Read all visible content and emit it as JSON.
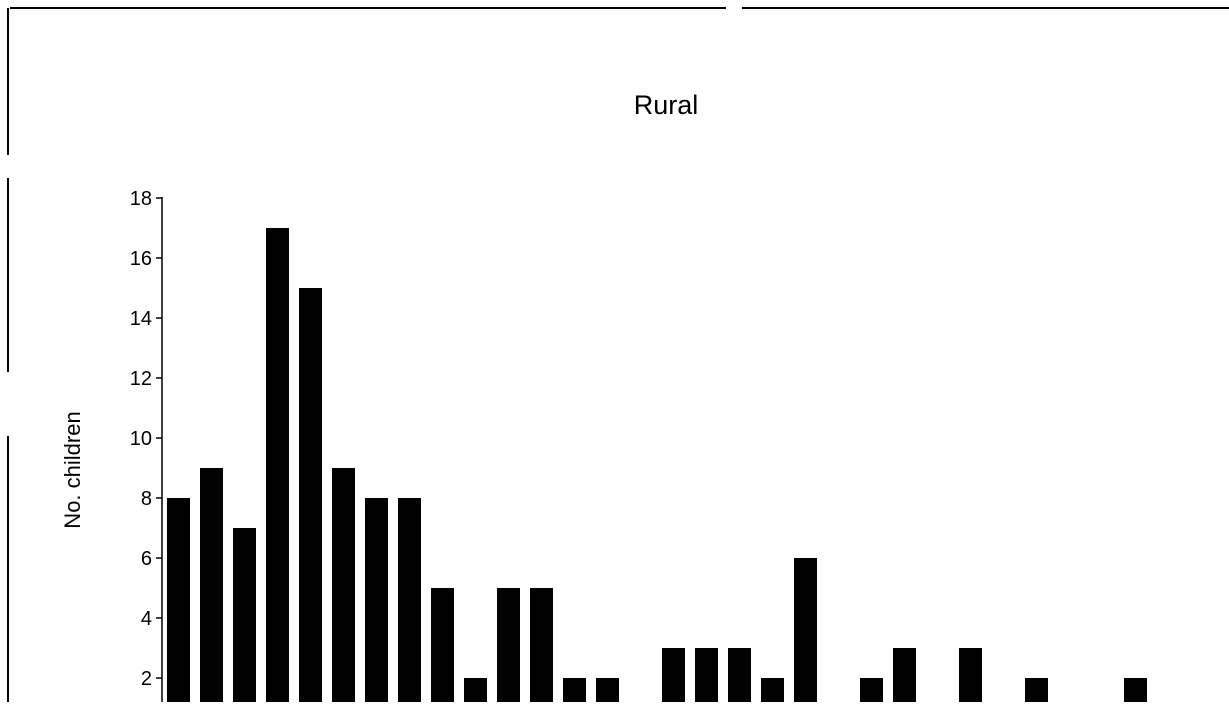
{
  "chart_data": {
    "type": "bar",
    "title": "Rural",
    "xlabel": "",
    "ylabel": "No. children",
    "ylim": [
      0,
      18
    ],
    "yticks": [
      2,
      4,
      6,
      8,
      10,
      12,
      14,
      16,
      18
    ],
    "grid": false,
    "legend": "none",
    "bar_color": "#000000",
    "series": [
      {
        "values": [
          8,
          9,
          7,
          17,
          15,
          9,
          8,
          8,
          5,
          2,
          5,
          5,
          2,
          2,
          0,
          3,
          3,
          3,
          2,
          6,
          0,
          2,
          3,
          0,
          3,
          0,
          2,
          0,
          0,
          2
        ]
      }
    ]
  }
}
